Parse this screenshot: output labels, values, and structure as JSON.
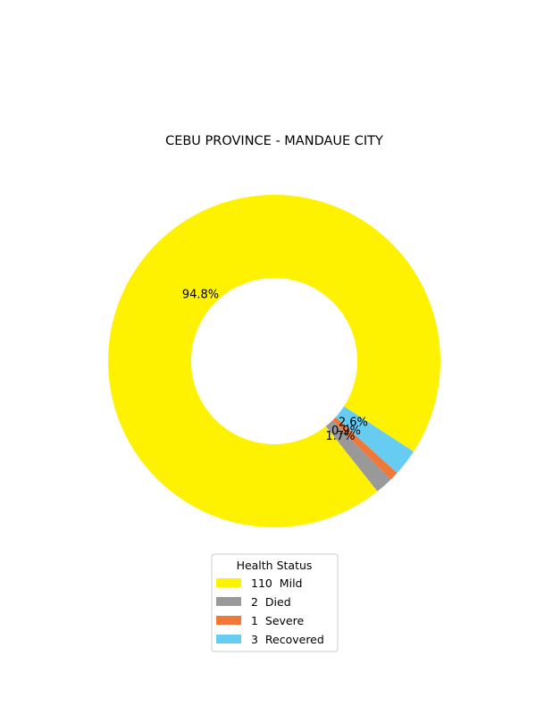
{
  "chart_data": {
    "type": "pie",
    "title": "CEBU PROVINCE - MANDAUE CITY",
    "legend_title": "Health Status",
    "legend_position": "bottom-center",
    "start_angle_deg": -33,
    "labels": [
      "Mild",
      "Died",
      "Severe",
      "Recovered"
    ],
    "values": [
      110,
      2,
      1,
      3
    ],
    "percent_labels": [
      "94.8%",
      "1.7%",
      "0.9%",
      "2.6%"
    ],
    "legend_entries": [
      "110  Mild",
      "2  Died",
      "1  Severe",
      "3  Recovered"
    ],
    "colors": [
      "#fff200",
      "#999999",
      "#f07838",
      "#66ccf2"
    ]
  }
}
